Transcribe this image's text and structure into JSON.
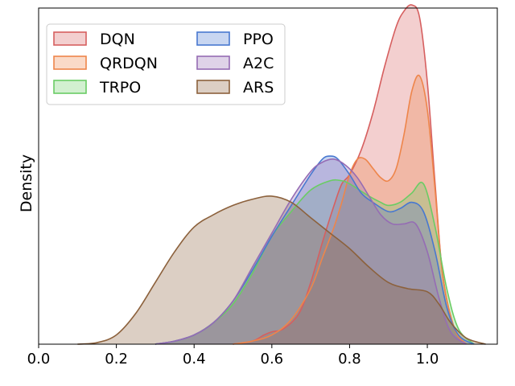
{
  "chart_data": {
    "type": "area",
    "title": "",
    "xlabel": "",
    "ylabel": "Density",
    "xlim": [
      0.0,
      1.18
    ],
    "ylim": [
      0,
      1.09
    ],
    "xticks": [
      "0.0",
      "0.2",
      "0.4",
      "0.6",
      "0.8",
      "1.0"
    ],
    "xtick_values": [
      0.0,
      0.2,
      0.4,
      0.6,
      0.8,
      1.0
    ],
    "legend_position": "top-left",
    "legend_columns": 2,
    "series": [
      {
        "name": "DQN",
        "color": "#d65f5f",
        "x": [
          0.5,
          0.55,
          0.58,
          0.6,
          0.63,
          0.67,
          0.7,
          0.73,
          0.76,
          0.78,
          0.8,
          0.83,
          0.86,
          0.89,
          0.92,
          0.94,
          0.96,
          0.98,
          1.0,
          1.02,
          1.04,
          1.07,
          1.1
        ],
        "y": [
          0.0,
          0.01,
          0.03,
          0.04,
          0.05,
          0.1,
          0.2,
          0.33,
          0.45,
          0.52,
          0.55,
          0.63,
          0.75,
          0.9,
          1.03,
          1.08,
          1.1,
          1.06,
          0.85,
          0.52,
          0.22,
          0.05,
          0.0
        ]
      },
      {
        "name": "QRDQN",
        "color": "#ee854a",
        "x": [
          0.5,
          0.55,
          0.6,
          0.65,
          0.7,
          0.73,
          0.76,
          0.78,
          0.8,
          0.82,
          0.84,
          0.86,
          0.88,
          0.9,
          0.92,
          0.94,
          0.96,
          0.98,
          1.0,
          1.02,
          1.04,
          1.07,
          1.1
        ],
        "y": [
          0.0,
          0.01,
          0.03,
          0.08,
          0.18,
          0.28,
          0.38,
          0.46,
          0.55,
          0.6,
          0.6,
          0.57,
          0.54,
          0.53,
          0.57,
          0.68,
          0.82,
          0.87,
          0.76,
          0.5,
          0.22,
          0.05,
          0.0
        ]
      },
      {
        "name": "TRPO",
        "color": "#6acc64",
        "x": [
          0.3,
          0.35,
          0.4,
          0.45,
          0.5,
          0.55,
          0.6,
          0.65,
          0.7,
          0.75,
          0.78,
          0.8,
          0.85,
          0.88,
          0.9,
          0.93,
          0.96,
          0.99,
          1.02,
          1.05,
          1.08,
          1.12
        ],
        "y": [
          0.0,
          0.01,
          0.03,
          0.07,
          0.13,
          0.23,
          0.35,
          0.43,
          0.5,
          0.53,
          0.53,
          0.52,
          0.48,
          0.46,
          0.45,
          0.46,
          0.49,
          0.52,
          0.38,
          0.18,
          0.05,
          0.0
        ]
      },
      {
        "name": "PPO",
        "color": "#4878d0",
        "x": [
          0.3,
          0.35,
          0.4,
          0.45,
          0.5,
          0.55,
          0.6,
          0.65,
          0.7,
          0.73,
          0.75,
          0.77,
          0.8,
          0.83,
          0.86,
          0.9,
          0.93,
          0.96,
          0.99,
          1.02,
          1.05,
          1.08,
          1.12
        ],
        "y": [
          0.0,
          0.01,
          0.03,
          0.07,
          0.14,
          0.24,
          0.35,
          0.45,
          0.55,
          0.6,
          0.61,
          0.6,
          0.55,
          0.49,
          0.46,
          0.43,
          0.44,
          0.46,
          0.43,
          0.3,
          0.12,
          0.03,
          0.0
        ]
      },
      {
        "name": "A2C",
        "color": "#956cb4",
        "x": [
          0.3,
          0.35,
          0.4,
          0.45,
          0.5,
          0.55,
          0.6,
          0.65,
          0.7,
          0.73,
          0.76,
          0.79,
          0.82,
          0.85,
          0.88,
          0.91,
          0.94,
          0.97,
          1.0,
          1.03,
          1.06,
          1.1
        ],
        "y": [
          0.0,
          0.01,
          0.03,
          0.07,
          0.14,
          0.25,
          0.36,
          0.47,
          0.56,
          0.59,
          0.6,
          0.58,
          0.54,
          0.48,
          0.42,
          0.39,
          0.39,
          0.39,
          0.3,
          0.15,
          0.04,
          0.0
        ]
      },
      {
        "name": "ARS",
        "color": "#8c613c",
        "x": [
          0.1,
          0.15,
          0.2,
          0.25,
          0.3,
          0.35,
          0.4,
          0.45,
          0.5,
          0.55,
          0.6,
          0.65,
          0.7,
          0.75,
          0.8,
          0.85,
          0.9,
          0.95,
          1.0,
          1.03,
          1.06,
          1.1,
          1.15
        ],
        "y": [
          0.0,
          0.005,
          0.03,
          0.1,
          0.2,
          0.3,
          0.38,
          0.42,
          0.45,
          0.47,
          0.48,
          0.46,
          0.41,
          0.36,
          0.31,
          0.25,
          0.2,
          0.18,
          0.17,
          0.13,
          0.07,
          0.02,
          0.0
        ]
      }
    ]
  }
}
